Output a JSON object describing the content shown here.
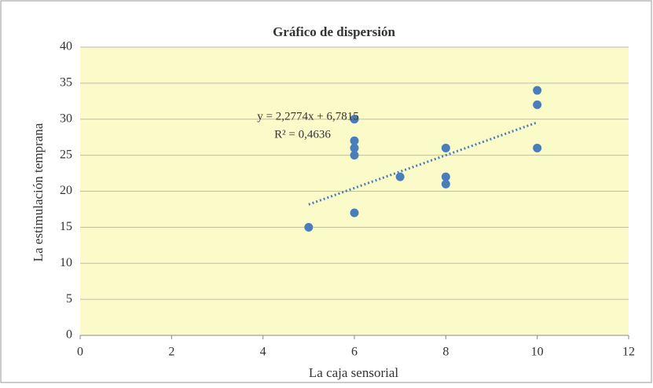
{
  "chart_data": {
    "type": "scatter",
    "title": "Gráfico de dispersión",
    "x_label": "La caja sensorial",
    "y_label": "La estimulación temprana",
    "x": [
      5,
      6,
      6,
      6,
      6,
      6,
      7,
      8,
      8,
      8,
      10,
      10,
      10
    ],
    "values": [
      15,
      17,
      25,
      26,
      27,
      30,
      22,
      21,
      22,
      26,
      26,
      32,
      34
    ],
    "color": "#4a7ebb",
    "xlim": [
      0,
      12
    ],
    "xticks": [
      0,
      2,
      4,
      6,
      8,
      10,
      12
    ],
    "ylim": [
      0,
      40
    ],
    "yticks": [
      0,
      5,
      10,
      15,
      20,
      25,
      30,
      35,
      40
    ],
    "grid": true,
    "trendline": {
      "slope": 2.2774,
      "intercept": 6.7815,
      "color": "#4a7ebb",
      "equation": "y = 2,2774x  + 6,7815",
      "r2_label": "R² = 0,4636"
    }
  }
}
